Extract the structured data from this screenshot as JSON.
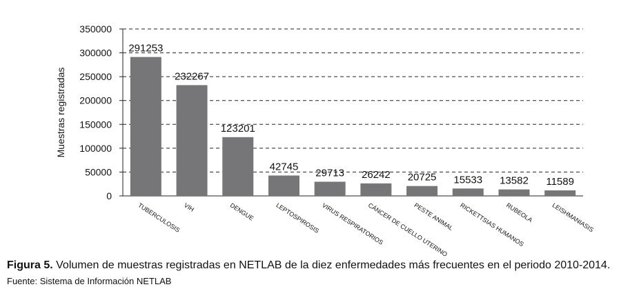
{
  "chart_data": {
    "type": "bar",
    "categories": [
      "TUBERCULOSIS",
      "VIH",
      "DENGUE",
      "LEPTOSPIROSIS",
      "VIRUS RESPIRATORIOS",
      "CÁNCER DE CUELLO UTERINO",
      "PESTE ANIMAL",
      "RICKETTSIAS HUMANOS",
      "RUBEOLA",
      "LEISHMANIASIS"
    ],
    "values": [
      291253,
      232267,
      123201,
      42745,
      29713,
      26242,
      20725,
      15533,
      13582,
      11589
    ],
    "xlabel": "",
    "ylabel": "Muestras registradas",
    "ylim": [
      0,
      350000
    ],
    "yticks": [
      0,
      50000,
      100000,
      150000,
      200000,
      250000,
      300000,
      350000
    ],
    "grid": true,
    "grid_style": "dashed",
    "bar_color": "#767679",
    "data_labels": true
  },
  "caption": {
    "label": "Figura 5.",
    "text": " Volumen de muestras registradas en NETLAB de la diez enfermedades más frecuentes en el periodo 2010-2014."
  },
  "source": "Fuente: Sistema de Información NETLAB"
}
